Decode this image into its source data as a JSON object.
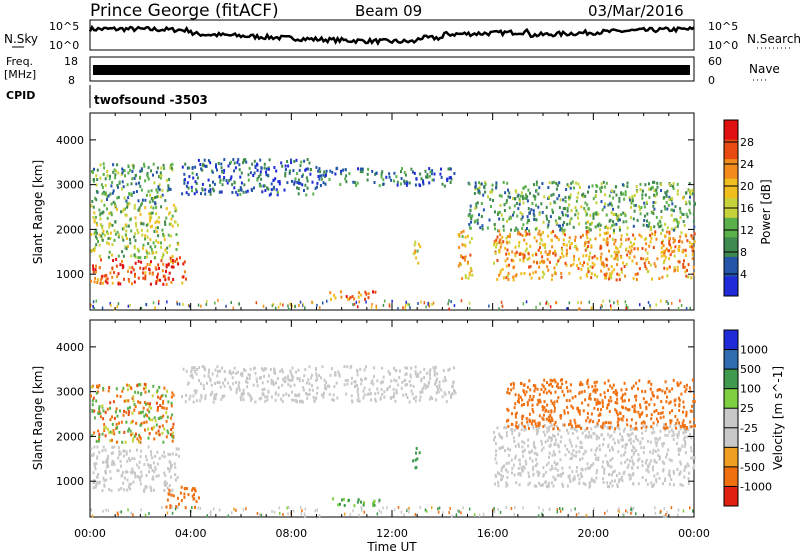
{
  "header": {
    "station": "Prince George (fitACF)",
    "beam": "Beam 09",
    "date": "03/Mar/2016"
  },
  "noise_panel": {
    "left_label": "N.Sky",
    "right_label": "N.Search",
    "left_ticks": [
      "10^5",
      "10^0"
    ],
    "right_ticks": [
      "10^5",
      "10^0"
    ]
  },
  "freq_panel": {
    "label_line1": "Freq.",
    "label_line2": "[MHz]",
    "left_ticks": [
      "18",
      "8"
    ],
    "right_label": "Nave",
    "right_ticks": [
      "60",
      "0"
    ]
  },
  "cpid_panel": {
    "label": "CPID",
    "value": "twofsound -3503"
  },
  "colors": {
    "power_scale": [
      "#1e2bd6",
      "#2356a8",
      "#3f8a4e",
      "#5ab04a",
      "#c8d23a",
      "#f0be1e",
      "#f28a1c",
      "#e84a12",
      "#e01010"
    ],
    "velocity_scale": [
      "#1e2bd6",
      "#2f6cb0",
      "#3f9a4e",
      "#7ed040",
      "#c8c8c8",
      "#c8c8c8",
      "#f0a020",
      "#f07010",
      "#e02010"
    ],
    "ground_scatter": "#c8c8c8"
  },
  "chart_data": [
    {
      "type": "heatmap",
      "name": "power",
      "ylabel": "Slant Range [km]",
      "xlim": [
        "00:00",
        "24:00"
      ],
      "ylim": [
        200,
        4600
      ],
      "yticks": [
        "1000",
        "2000",
        "3000",
        "4000"
      ],
      "colorbar_label": "Power [dB]",
      "colorbar_ticks": [
        "4",
        "8",
        "12",
        "16",
        "20",
        "24",
        "28"
      ],
      "colorbar_range": [
        0,
        32
      ],
      "regions": [
        {
          "t0": 0.0,
          "t1": 3.8,
          "r0": 800,
          "r1": 1400,
          "level": 26
        },
        {
          "t0": 0.0,
          "t1": 3.5,
          "r0": 1400,
          "r1": 2600,
          "level": 14
        },
        {
          "t0": 0.0,
          "t1": 3.3,
          "r0": 2600,
          "r1": 3500,
          "level": 10
        },
        {
          "t0": 3.6,
          "t1": 9.0,
          "r0": 2800,
          "r1": 3600,
          "level": 6
        },
        {
          "t0": 9.0,
          "t1": 14.5,
          "r0": 3000,
          "r1": 3400,
          "level": 7
        },
        {
          "t0": 9.5,
          "t1": 11.5,
          "r0": 450,
          "r1": 650,
          "level": 24
        },
        {
          "t0": 12.8,
          "t1": 13.1,
          "r0": 1200,
          "r1": 1800,
          "level": 18
        },
        {
          "t0": 14.6,
          "t1": 15.2,
          "r0": 900,
          "r1": 2000,
          "level": 20
        },
        {
          "t0": 15.0,
          "t1": 19.0,
          "r0": 2000,
          "r1": 3100,
          "level": 10
        },
        {
          "t0": 16.0,
          "t1": 24.0,
          "r0": 900,
          "r1": 2000,
          "level": 22
        },
        {
          "t0": 19.0,
          "t1": 24.0,
          "r0": 2000,
          "r1": 3100,
          "level": 12
        }
      ]
    },
    {
      "type": "heatmap",
      "name": "velocity",
      "xlabel": "Time UT",
      "ylabel": "Slant Range [km]",
      "xticks": [
        "00:00",
        "04:00",
        "08:00",
        "12:00",
        "16:00",
        "20:00",
        "00:00"
      ],
      "ylim": [
        200,
        4600
      ],
      "yticks": [
        "1000",
        "2000",
        "3000",
        "4000"
      ],
      "colorbar_label": "Velocity [m s^-1]",
      "colorbar_ticks": [
        "1000",
        "500",
        "100",
        "25",
        "-25",
        "-100",
        "-500",
        "-1000"
      ],
      "regions": [
        {
          "t0": 0.0,
          "t1": 3.5,
          "r0": 800,
          "r1": 1800,
          "level": "gs"
        },
        {
          "t0": 0.0,
          "t1": 3.3,
          "r0": 1900,
          "r1": 3200,
          "level": "mixed"
        },
        {
          "t0": 3.0,
          "t1": 4.3,
          "r0": 400,
          "r1": 900,
          "level": -300
        },
        {
          "t0": 3.6,
          "t1": 14.5,
          "r0": 2800,
          "r1": 3600,
          "level": "gs"
        },
        {
          "t0": 9.5,
          "t1": 11.5,
          "r0": 450,
          "r1": 650,
          "level": 150
        },
        {
          "t0": 12.8,
          "t1": 13.1,
          "r0": 1300,
          "r1": 1800,
          "level": 300
        },
        {
          "t0": 16.0,
          "t1": 24.0,
          "r0": 900,
          "r1": 2300,
          "level": "gs"
        },
        {
          "t0": 16.5,
          "t1": 24.0,
          "r0": 2200,
          "r1": 3300,
          "level": -300
        }
      ]
    }
  ]
}
